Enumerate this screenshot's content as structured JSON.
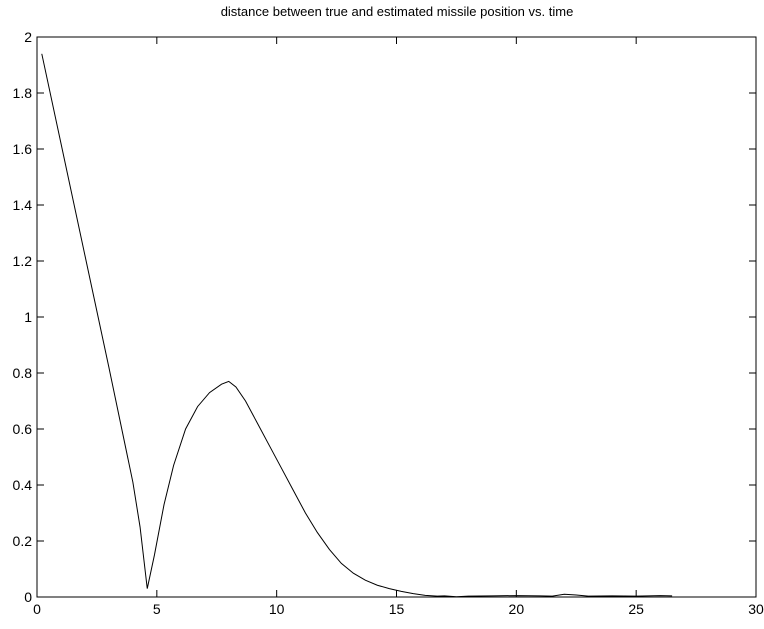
{
  "chart_data": {
    "type": "line",
    "title": "distance between true and estimated missile position vs. time",
    "xlabel": "",
    "ylabel": "",
    "xlim": [
      0,
      30
    ],
    "ylim": [
      0,
      2
    ],
    "x_ticks": [
      0,
      5,
      10,
      15,
      20,
      25,
      30
    ],
    "y_ticks": [
      0,
      0.2,
      0.4,
      0.6,
      0.8,
      1,
      1.2,
      1.4,
      1.6,
      1.8,
      2
    ],
    "x_tick_labels": [
      "0",
      "5",
      "10",
      "15",
      "20",
      "25",
      "30"
    ],
    "y_tick_labels": [
      "0",
      "0.2",
      "0.4",
      "0.6",
      "0.8",
      "1",
      "1.2",
      "1.4",
      "1.6",
      "1.8",
      "2"
    ],
    "grid": false,
    "line_color": "#000000",
    "series": [
      {
        "x": [
          0.2,
          1,
          2,
          3,
          4,
          4.3,
          4.6,
          4.9,
          5.3,
          5.7,
          6.2,
          6.7,
          7.2,
          7.7,
          8.0,
          8.3,
          8.7,
          9.2,
          9.7,
          10.2,
          10.7,
          11.2,
          11.7,
          12.2,
          12.7,
          13.2,
          13.7,
          14.2,
          14.7,
          15.2,
          15.7,
          16.2,
          16.7,
          17.0,
          17.5,
          18,
          19,
          20,
          21,
          21.5,
          22,
          22.5,
          23,
          24,
          25,
          26,
          26.5
        ],
        "y": [
          1.94,
          1.62,
          1.22,
          0.82,
          0.41,
          0.25,
          0.03,
          0.15,
          0.33,
          0.47,
          0.6,
          0.68,
          0.73,
          0.76,
          0.77,
          0.75,
          0.7,
          0.62,
          0.54,
          0.46,
          0.38,
          0.3,
          0.23,
          0.17,
          0.12,
          0.085,
          0.06,
          0.042,
          0.03,
          0.02,
          0.012,
          0.006,
          0.003,
          0.004,
          0.001,
          0.003,
          0.004,
          0.005,
          0.004,
          0.003,
          0.01,
          0.007,
          0.003,
          0.004,
          0.003,
          0.005,
          0.004
        ]
      }
    ]
  }
}
